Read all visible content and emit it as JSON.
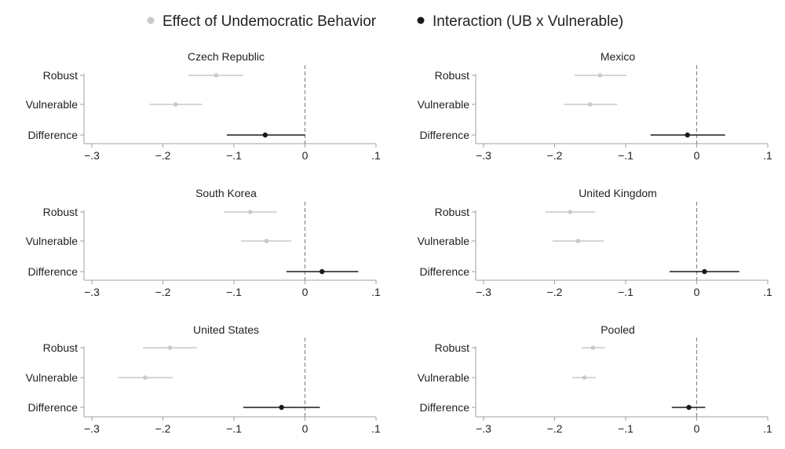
{
  "legend": {
    "items": [
      {
        "label": "Effect of Undemocratic Behavior",
        "color": "#c9c9c9"
      },
      {
        "label": "Interaction (UB x Vulnerable)",
        "color": "#1a1a1a"
      }
    ]
  },
  "colors": {
    "effect": "#c9c9c9",
    "interaction": "#1a1a1a",
    "zero_line": "#8a8a8a",
    "axis": "#a0a0a0"
  },
  "chart_data": [
    {
      "type": "scatter",
      "subtype": "coefficient-plot",
      "title": "Czech Republic",
      "categories": [
        "Robust",
        "Vulnerable",
        "Difference"
      ],
      "xlim": [
        -0.3,
        0.1
      ],
      "xticks": [
        -0.3,
        -0.2,
        -0.1,
        0,
        0.1
      ],
      "xtick_labels": [
        "−.3",
        "−.2",
        "−.1",
        "0",
        ".1"
      ],
      "reference_line": 0,
      "series": [
        {
          "name": "Effect of Undemocratic Behavior",
          "points": [
            {
              "category": "Robust",
              "estimate": -0.125,
              "lower": -0.164,
              "upper": -0.087
            },
            {
              "category": "Vulnerable",
              "estimate": -0.182,
              "lower": -0.219,
              "upper": -0.145
            }
          ]
        },
        {
          "name": "Interaction (UB x Vulnerable)",
          "points": [
            {
              "category": "Difference",
              "estimate": -0.056,
              "lower": -0.11,
              "upper": 0.0
            }
          ]
        }
      ]
    },
    {
      "type": "scatter",
      "subtype": "coefficient-plot",
      "title": "Mexico",
      "categories": [
        "Robust",
        "Vulnerable",
        "Difference"
      ],
      "xlim": [
        -0.3,
        0.1
      ],
      "xticks": [
        -0.3,
        -0.2,
        -0.1,
        0,
        0.1
      ],
      "xtick_labels": [
        "−.3",
        "−.2",
        "−.1",
        "0",
        ".1"
      ],
      "reference_line": 0,
      "series": [
        {
          "name": "Effect of Undemocratic Behavior",
          "points": [
            {
              "category": "Robust",
              "estimate": -0.136,
              "lower": -0.172,
              "upper": -0.099
            },
            {
              "category": "Vulnerable",
              "estimate": -0.15,
              "lower": -0.187,
              "upper": -0.112
            }
          ]
        },
        {
          "name": "Interaction (UB x Vulnerable)",
          "points": [
            {
              "category": "Difference",
              "estimate": -0.013,
              "lower": -0.065,
              "upper": 0.04
            }
          ]
        }
      ]
    },
    {
      "type": "scatter",
      "subtype": "coefficient-plot",
      "title": "South Korea",
      "categories": [
        "Robust",
        "Vulnerable",
        "Difference"
      ],
      "xlim": [
        -0.3,
        0.1
      ],
      "xticks": [
        -0.3,
        -0.2,
        -0.1,
        0,
        0.1
      ],
      "xtick_labels": [
        "−.3",
        "−.2",
        "−.1",
        "0",
        ".1"
      ],
      "reference_line": 0,
      "series": [
        {
          "name": "Effect of Undemocratic Behavior",
          "points": [
            {
              "category": "Robust",
              "estimate": -0.077,
              "lower": -0.114,
              "upper": -0.04
            },
            {
              "category": "Vulnerable",
              "estimate": -0.054,
              "lower": -0.09,
              "upper": -0.019
            }
          ]
        },
        {
          "name": "Interaction (UB x Vulnerable)",
          "points": [
            {
              "category": "Difference",
              "estimate": 0.024,
              "lower": -0.026,
              "upper": 0.075
            }
          ]
        }
      ]
    },
    {
      "type": "scatter",
      "subtype": "coefficient-plot",
      "title": "United Kingdom",
      "categories": [
        "Robust",
        "Vulnerable",
        "Difference"
      ],
      "xlim": [
        -0.3,
        0.1
      ],
      "xticks": [
        -0.3,
        -0.2,
        -0.1,
        0,
        0.1
      ],
      "xtick_labels": [
        "−.3",
        "−.2",
        "−.1",
        "0",
        ".1"
      ],
      "reference_line": 0,
      "series": [
        {
          "name": "Effect of Undemocratic Behavior",
          "points": [
            {
              "category": "Robust",
              "estimate": -0.178,
              "lower": -0.213,
              "upper": -0.143
            },
            {
              "category": "Vulnerable",
              "estimate": -0.167,
              "lower": -0.203,
              "upper": -0.131
            }
          ]
        },
        {
          "name": "Interaction (UB x Vulnerable)",
          "points": [
            {
              "category": "Difference",
              "estimate": 0.011,
              "lower": -0.038,
              "upper": 0.06
            }
          ]
        }
      ]
    },
    {
      "type": "scatter",
      "subtype": "coefficient-plot",
      "title": "United States",
      "categories": [
        "Robust",
        "Vulnerable",
        "Difference"
      ],
      "xlim": [
        -0.3,
        0.1
      ],
      "xticks": [
        -0.3,
        -0.2,
        -0.1,
        0,
        0.1
      ],
      "xtick_labels": [
        "−.3",
        "−.2",
        "−.1",
        "0",
        ".1"
      ],
      "reference_line": 0,
      "series": [
        {
          "name": "Effect of Undemocratic Behavior",
          "points": [
            {
              "category": "Robust",
              "estimate": -0.19,
              "lower": -0.228,
              "upper": -0.152
            },
            {
              "category": "Vulnerable",
              "estimate": -0.225,
              "lower": -0.263,
              "upper": -0.186
            }
          ]
        },
        {
          "name": "Interaction (UB x Vulnerable)",
          "points": [
            {
              "category": "Difference",
              "estimate": -0.033,
              "lower": -0.087,
              "upper": 0.021
            }
          ]
        }
      ]
    },
    {
      "type": "scatter",
      "subtype": "coefficient-plot",
      "title": "Pooled",
      "categories": [
        "Robust",
        "Vulnerable",
        "Difference"
      ],
      "xlim": [
        -0.3,
        0.1
      ],
      "xticks": [
        -0.3,
        -0.2,
        -0.1,
        0,
        0.1
      ],
      "xtick_labels": [
        "−.3",
        "−.2",
        "−.1",
        "0",
        ".1"
      ],
      "reference_line": 0,
      "series": [
        {
          "name": "Effect of Undemocratic Behavior",
          "points": [
            {
              "category": "Robust",
              "estimate": -0.146,
              "lower": -0.162,
              "upper": -0.129
            },
            {
              "category": "Vulnerable",
              "estimate": -0.158,
              "lower": -0.175,
              "upper": -0.142
            }
          ]
        },
        {
          "name": "Interaction (UB x Vulnerable)",
          "points": [
            {
              "category": "Difference",
              "estimate": -0.011,
              "lower": -0.035,
              "upper": 0.012
            }
          ]
        }
      ]
    }
  ]
}
